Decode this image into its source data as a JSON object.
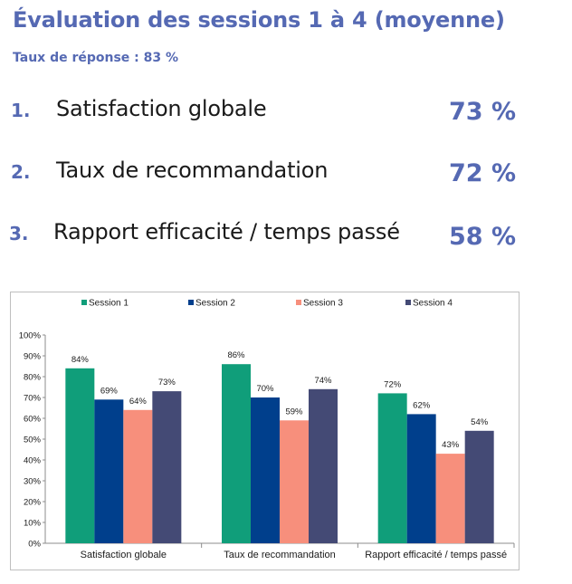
{
  "header": {
    "title": "Évaluation des sessions 1 à 4 (moyenne)",
    "subtitle": "Taux de réponse : 83 %"
  },
  "kpis": [
    {
      "number": "1.",
      "label": "Satisfaction globale",
      "value": "73 %"
    },
    {
      "number": "2.",
      "label": "Taux de recommandation",
      "value": "72 %"
    },
    {
      "number": "3.",
      "label": "Rapport efficacité / temps passé",
      "value": "58 %"
    }
  ],
  "chart_data": {
    "type": "bar",
    "categories": [
      "Satisfaction globale",
      "Taux de recommandation",
      "Rapport efficacité / temps passé"
    ],
    "series": [
      {
        "name": "Session 1",
        "values": [
          84,
          86,
          72
        ],
        "labels": [
          "84%",
          "86%",
          "72%"
        ],
        "color": "#109e7a"
      },
      {
        "name": "Session 2",
        "values": [
          69,
          70,
          62
        ],
        "labels": [
          "69%",
          "70%",
          "62%"
        ],
        "color": "#003f8c"
      },
      {
        "name": "Session 3",
        "values": [
          64,
          59,
          43
        ],
        "labels": [
          "64%",
          "59%",
          "43%"
        ],
        "color": "#f78f7c"
      },
      {
        "name": "Session 4",
        "values": [
          73,
          74,
          54
        ],
        "labels": [
          "73%",
          "74%",
          "54%"
        ],
        "color": "#444a75"
      }
    ],
    "yticks": [
      "0%",
      "10%",
      "20%",
      "30%",
      "40%",
      "50%",
      "60%",
      "70%",
      "80%",
      "90%",
      "100%"
    ],
    "ylim": [
      0,
      100
    ],
    "legend": "top",
    "grid": false
  }
}
